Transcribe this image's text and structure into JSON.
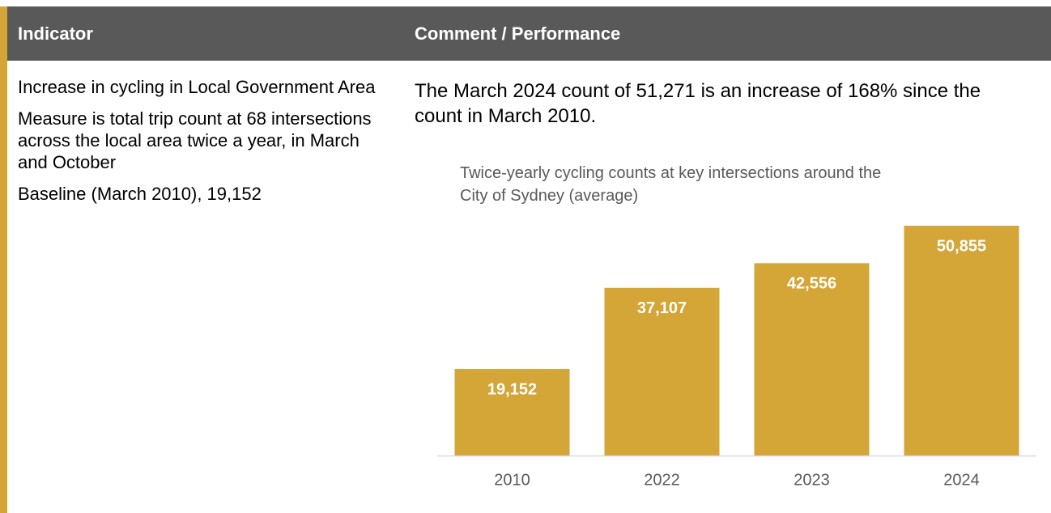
{
  "header": {
    "columns": [
      "Indicator",
      "Comment / Performance"
    ]
  },
  "indicator": {
    "paragraphs": [
      "Increase in cycling in Local Government Area",
      "Measure is total trip count at 68 intersections across the local area twice a year, in March and October",
      "Baseline (March 2010), 19,152"
    ]
  },
  "comment": {
    "text": "The March 2024 count of 51,271 is an increase of 168% since the count in March 2010."
  },
  "chart_data": {
    "type": "bar",
    "title": "Twice-yearly cycling counts at key intersections around the City of Sydney (average)",
    "categories": [
      "2010",
      "2022",
      "2023",
      "2024"
    ],
    "values": [
      19152,
      37107,
      42556,
      50855
    ],
    "value_labels": [
      "19,152",
      "37,107",
      "42,556",
      "50,855"
    ],
    "color": "#d4a537"
  }
}
